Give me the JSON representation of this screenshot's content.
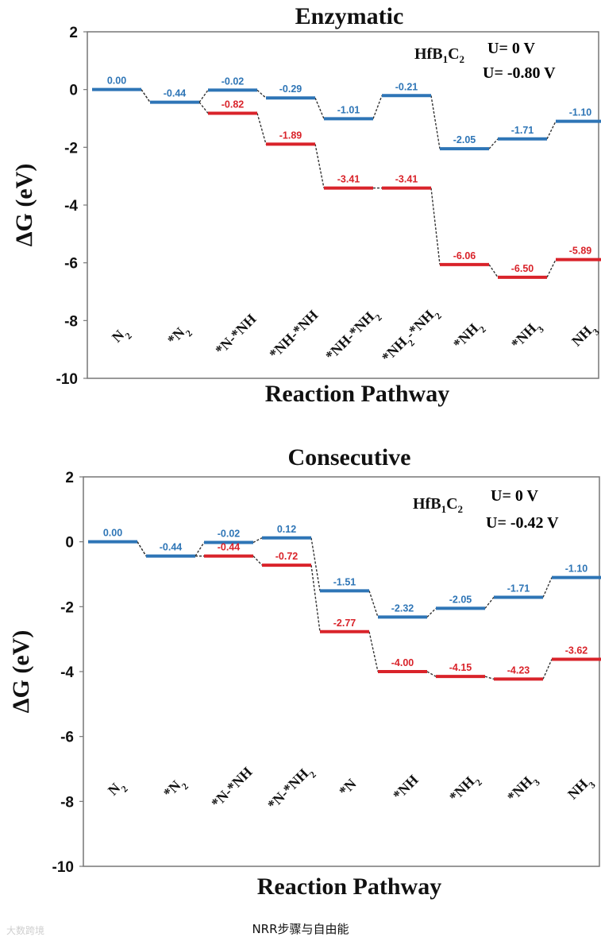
{
  "caption": "NRR步骤与自由能",
  "watermark": "大数跨境",
  "colors": {
    "u0": "#2e75b6",
    "uneg": "#d9232a",
    "connector": "#333333",
    "frame": "#777777"
  },
  "chart_data": [
    {
      "type": "line",
      "title": "Enzymatic",
      "xlabel": "Reaction Pathway",
      "ylabel": "ΔG (eV)",
      "ylim": [
        -10,
        2
      ],
      "yticks": [
        "2",
        "0",
        "-2",
        "-4",
        "-6",
        "-8",
        "-10"
      ],
      "ytick_values": [
        2,
        0,
        -2,
        -4,
        -6,
        -8,
        -10
      ],
      "material_label": "HfB1C2",
      "categories": [
        "N2",
        "*N2",
        "*N-*NH",
        "*NH-*NH",
        "*NH-*NH2",
        "*NH2-*NH2",
        "*NH2",
        "*NH3",
        "NH3"
      ],
      "series": [
        {
          "name": "U=  0 V",
          "color": "#2e75b6",
          "values": [
            0.0,
            -0.44,
            -0.02,
            -0.29,
            -1.01,
            -0.21,
            -2.05,
            -1.71,
            -1.1
          ],
          "labels": [
            "0.00",
            "-0.44",
            "-0.02",
            "-0.29",
            "-1.01",
            "-0.21",
            "-2.05",
            "-1.71",
            "-1.10"
          ]
        },
        {
          "name": "U= -0.80 V",
          "color": "#d9232a",
          "values": [
            0.0,
            -0.44,
            -0.82,
            -1.89,
            -3.41,
            -3.41,
            -6.06,
            -6.5,
            -5.89
          ],
          "labels": [
            "",
            "",
            "-0.82",
            "-1.89",
            "-3.41",
            "-3.41",
            "-6.06",
            "-6.50",
            "-5.89"
          ]
        }
      ]
    },
    {
      "type": "line",
      "title": "Consecutive",
      "xlabel": "Reaction Pathway",
      "ylabel": "ΔG (eV)",
      "ylim": [
        -10,
        2
      ],
      "yticks": [
        "2",
        "0",
        "-2",
        "-4",
        "-6",
        "-8",
        "-10"
      ],
      "ytick_values": [
        2,
        0,
        -2,
        -4,
        -6,
        -8,
        -10
      ],
      "material_label": "HfB1C2",
      "categories": [
        "N2",
        "*N2",
        "*N-*NH",
        "*N-*NH2",
        "*N",
        "*NH",
        "*NH2",
        "*NH3",
        "NH3"
      ],
      "series": [
        {
          "name": "U=  0 V",
          "color": "#2e75b6",
          "values": [
            0.0,
            -0.44,
            -0.02,
            0.12,
            -1.51,
            -2.32,
            -2.05,
            -1.71,
            -1.1
          ],
          "labels": [
            "0.00",
            "-0.44",
            "-0.02",
            "0.12",
            "-1.51",
            "-2.32",
            "-2.05",
            "-1.71",
            "-1.10"
          ]
        },
        {
          "name": "U= -0.42 V",
          "color": "#d9232a",
          "values": [
            0.0,
            -0.44,
            -0.44,
            -0.72,
            -2.77,
            -4.0,
            -4.15,
            -4.23,
            -3.62
          ],
          "labels": [
            "",
            "",
            "-0.44",
            "-0.72",
            "-2.77",
            "-4.00",
            "-4.15",
            "-4.23",
            "-3.62"
          ]
        }
      ]
    }
  ]
}
